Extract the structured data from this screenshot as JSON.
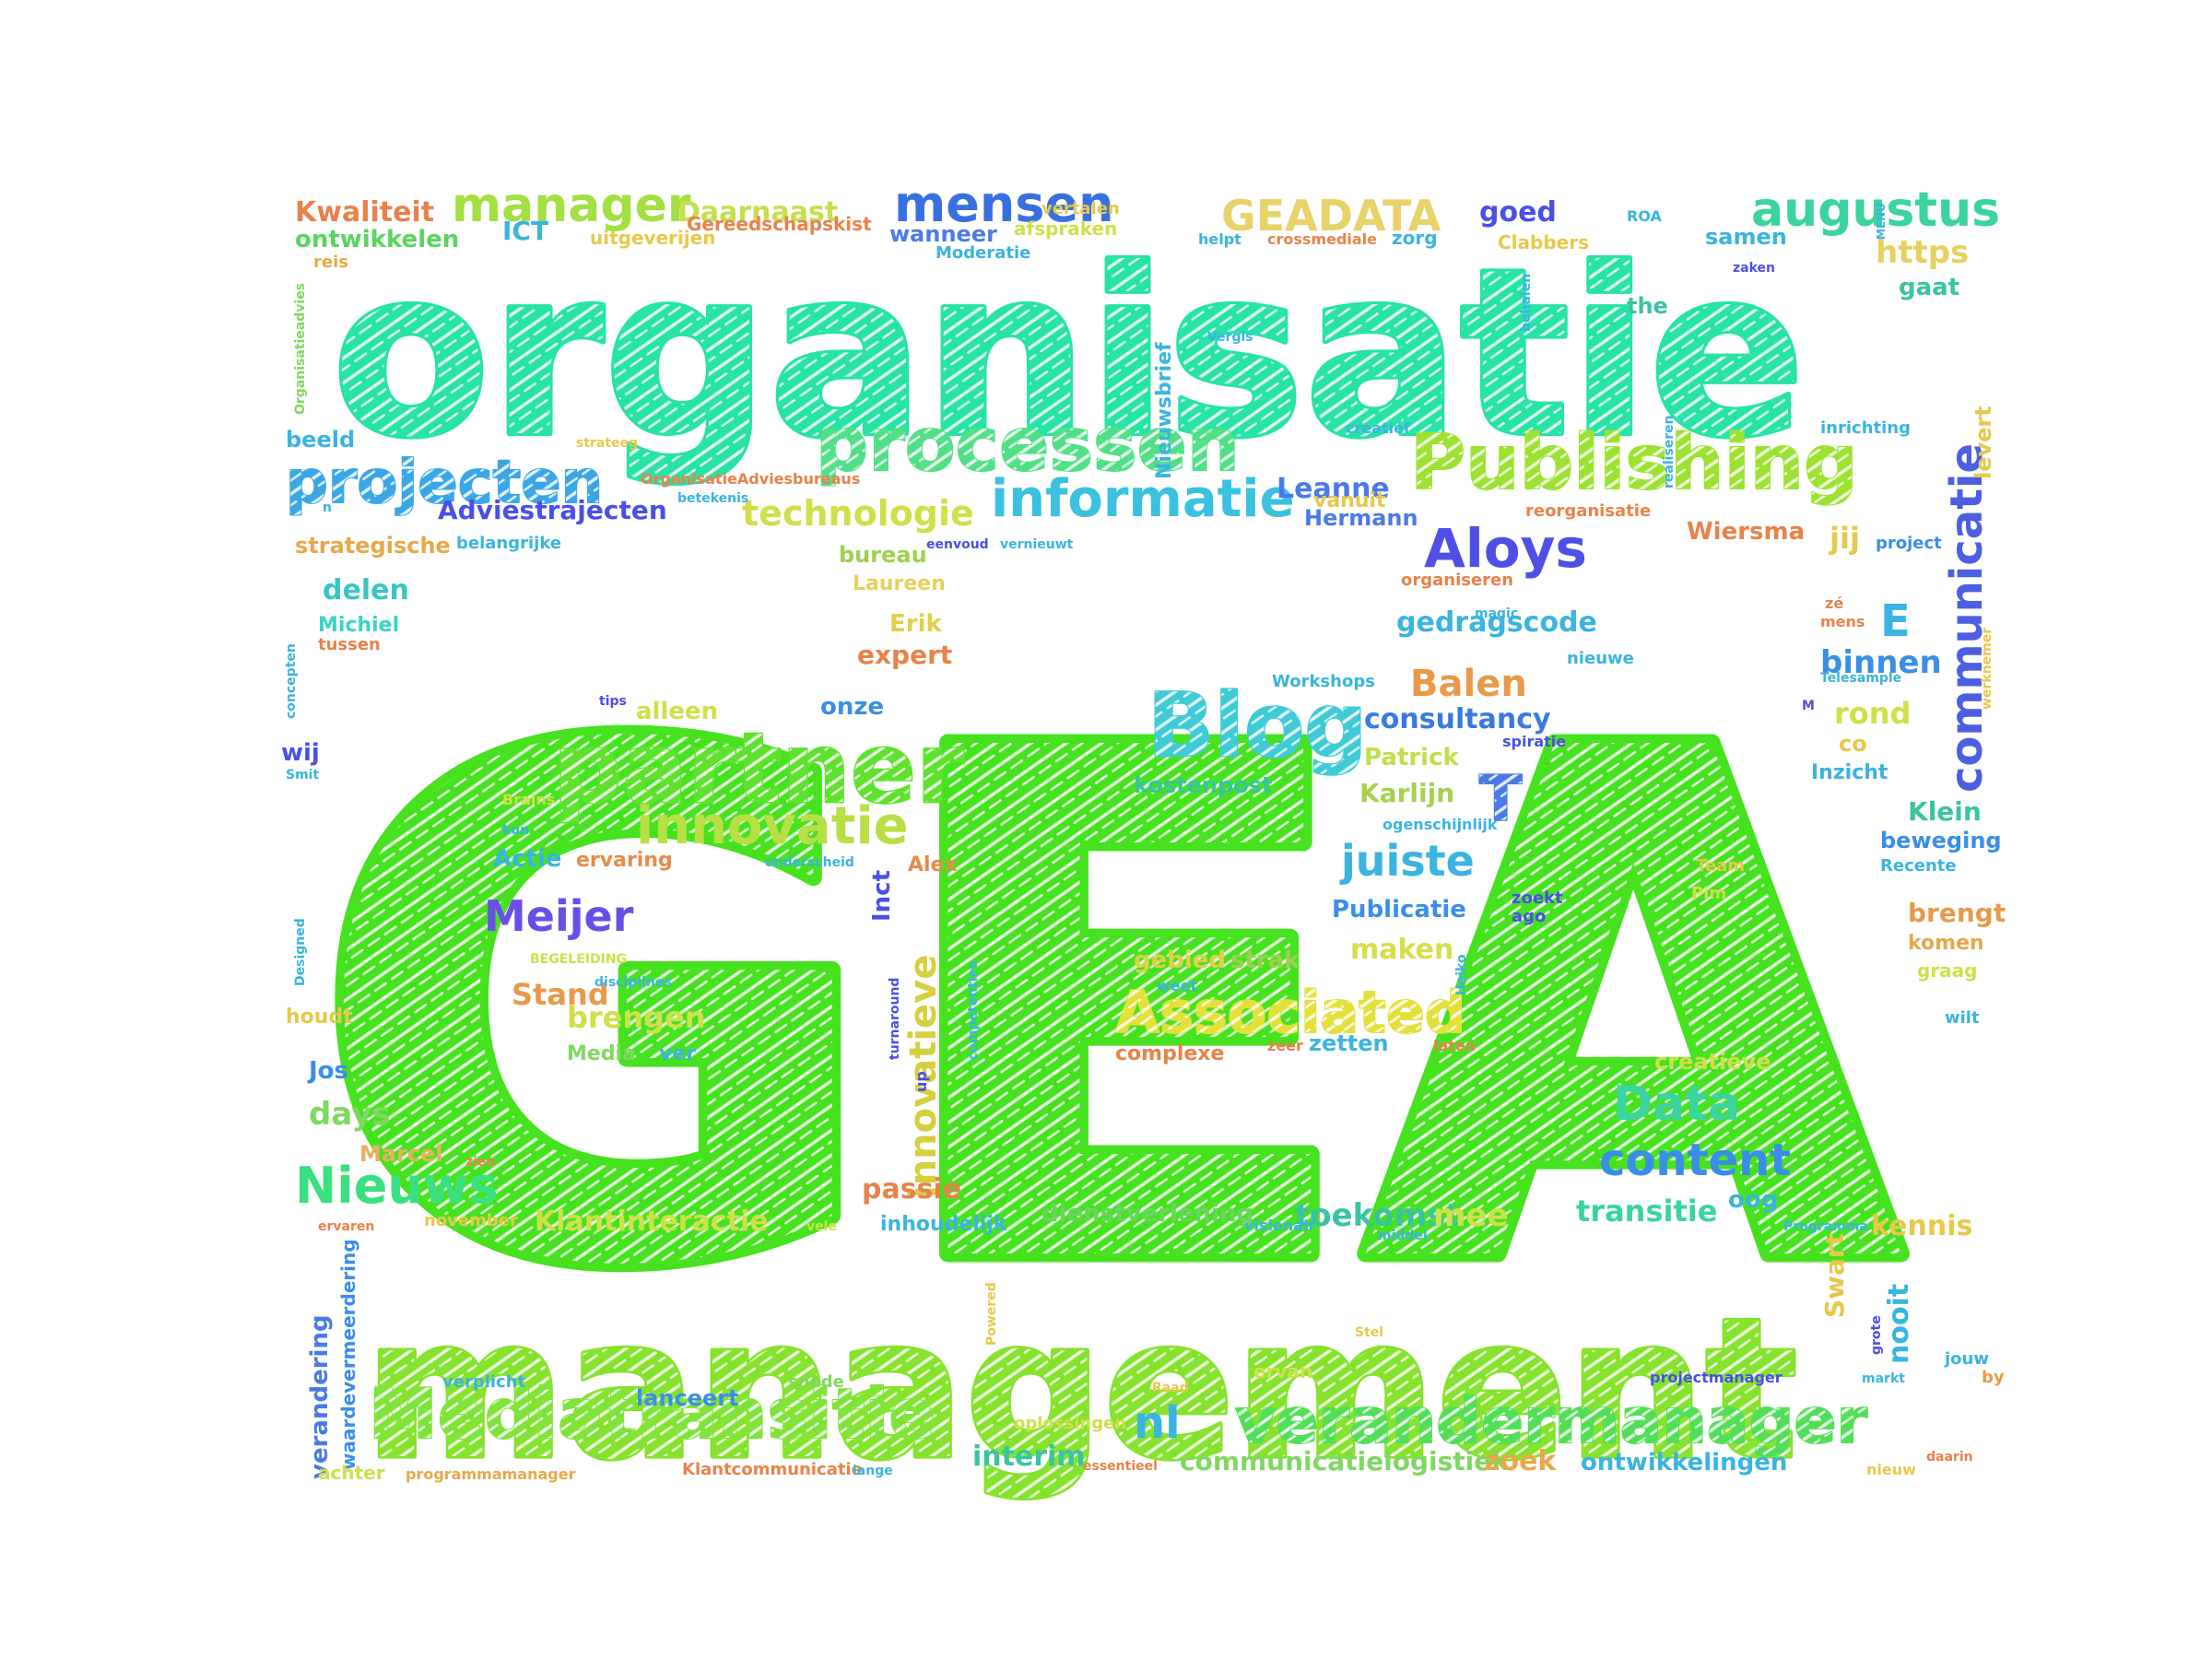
{
  "words": [
    {
      "text": "GEA",
      "color": "#47e21f"
    },
    {
      "text": "organisatie",
      "color": "#27e3a5"
    },
    {
      "text": "management",
      "color": "#86e32d"
    },
    {
      "text": "Publishing",
      "color": "#9be330"
    },
    {
      "text": "partner",
      "color": "#5ee22e"
    },
    {
      "text": "Blog",
      "color": "#3ecbd6"
    },
    {
      "text": "processen",
      "color": "#52e087"
    },
    {
      "text": "projecten",
      "color": "#3aa6e6"
    },
    {
      "text": "Mediatransitie",
      "color": "#7fe33a"
    },
    {
      "text": "verandermanager",
      "color": "#52df57"
    },
    {
      "text": "innovatie",
      "color": "#b8e044"
    },
    {
      "text": "Associated",
      "color": "#e3e03a"
    },
    {
      "text": "informatie",
      "color": "#3ac1e0"
    },
    {
      "text": "mensen",
      "color": "#3a6fe0"
    },
    {
      "text": "manager",
      "color": "#a3e042"
    },
    {
      "text": "augustus",
      "color": "#3ad49c"
    },
    {
      "text": "communicatie",
      "color": "#4b5fe0"
    },
    {
      "text": "GEADATA",
      "color": "#e8d36b"
    },
    {
      "text": "Aloys",
      "color": "#4f4fe6"
    },
    {
      "text": "Nieuws",
      "color": "#3ae07f"
    },
    {
      "text": "technologie",
      "color": "#d0df4a"
    },
    {
      "text": "content",
      "color": "#3a8ee6"
    },
    {
      "text": "Data",
      "color": "#3ad4a0"
    },
    {
      "text": "juiste",
      "color": "#3ab4e0"
    },
    {
      "text": "Meijer",
      "color": "#6a4fe6"
    },
    {
      "text": "innovatieve",
      "color": "#d6cf3e"
    },
    {
      "text": "Balen",
      "color": "#e89a4a"
    },
    {
      "text": "consultancy",
      "color": "#3a7ae0"
    },
    {
      "text": "Kwaliteit",
      "color": "#e8824a"
    },
    {
      "text": "ontwikkelen",
      "color": "#5ad460"
    },
    {
      "text": "Daarnaast",
      "color": "#c6df4a"
    },
    {
      "text": "Leanne",
      "color": "#4a7ae6"
    },
    {
      "text": "Adviestrajecten",
      "color": "#4a4fe6"
    },
    {
      "text": "strategische",
      "color": "#e8a84a"
    },
    {
      "text": "delen",
      "color": "#3ac4c4"
    },
    {
      "text": "Michiel",
      "color": "#3ad4c4"
    },
    {
      "text": "alleen",
      "color": "#cfe04a"
    },
    {
      "text": "onze",
      "color": "#3a8ee6"
    },
    {
      "text": "expert",
      "color": "#e8824a"
    },
    {
      "text": "Erik",
      "color": "#dfd04a"
    },
    {
      "text": "Laureen",
      "color": "#e8d060"
    },
    {
      "text": "bureau",
      "color": "#9fd050"
    },
    {
      "text": "gedragscode",
      "color": "#3ab4e0"
    },
    {
      "text": "Patrick",
      "color": "#c0df4a"
    },
    {
      "text": "Karlijn",
      "color": "#a8d050"
    },
    {
      "text": "kostenpost",
      "color": "#3ac4a0"
    },
    {
      "text": "Publicatie",
      "color": "#3a8ee6"
    },
    {
      "text": "maken",
      "color": "#d6df4a"
    },
    {
      "text": "gebied",
      "color": "#dfd04a"
    },
    {
      "text": "strak",
      "color": "#a0d050"
    },
    {
      "text": "complexe",
      "color": "#e8824a"
    },
    {
      "text": "zetten",
      "color": "#3ab4e0"
    },
    {
      "text": "brengen",
      "color": "#cfe04a"
    },
    {
      "text": "Stand",
      "color": "#e89a4a"
    },
    {
      "text": "Media",
      "color": "#7fd860"
    },
    {
      "text": "ver",
      "color": "#3ab4e0"
    },
    {
      "text": "Actie",
      "color": "#3ab4e0"
    },
    {
      "text": "ervaring",
      "color": "#e88a4a"
    },
    {
      "text": "Alex",
      "color": "#e88a4a"
    },
    {
      "text": "Inct",
      "color": "#4a4fe6"
    },
    {
      "text": "passie",
      "color": "#e8824a"
    },
    {
      "text": "inhoudelijk",
      "color": "#3ab4e0"
    },
    {
      "text": "dienstverlening",
      "color": "#6ad460"
    },
    {
      "text": "Klantinteractie",
      "color": "#cfe04a"
    },
    {
      "text": "toekomst",
      "color": "#3ac4a0"
    },
    {
      "text": "mee",
      "color": "#cfe04a"
    },
    {
      "text": "transitie",
      "color": "#3ad4a0"
    },
    {
      "text": "oog",
      "color": "#3ab4e0"
    },
    {
      "text": "kennis",
      "color": "#e8c84a"
    },
    {
      "text": "Swart",
      "color": "#e8c84a"
    },
    {
      "text": "nooit",
      "color": "#3ab4e0"
    },
    {
      "text": "days",
      "color": "#7fd860"
    },
    {
      "text": "Marcel",
      "color": "#e8b060"
    },
    {
      "text": "Jos",
      "color": "#3a8ee6"
    },
    {
      "text": "houdt",
      "color": "#e8c84a"
    },
    {
      "text": "wij",
      "color": "#4a4fe6"
    },
    {
      "text": "beeld",
      "color": "#3ab4e0"
    },
    {
      "text": "verandering",
      "color": "#4a7ae6"
    },
    {
      "text": "waardevermeerdering",
      "color": "#3a8ee6"
    },
    {
      "text": "achter",
      "color": "#cfe04a"
    },
    {
      "text": "programmamanager",
      "color": "#e8a84a"
    },
    {
      "text": "lanceert",
      "color": "#3a8ee6"
    },
    {
      "text": "verplicht",
      "color": "#3ab4e0"
    },
    {
      "text": "snede",
      "color": "#7fd860"
    },
    {
      "text": "interim",
      "color": "#3ac4a0"
    },
    {
      "text": "nl",
      "color": "#3ab4e0"
    },
    {
      "text": "communicatielogistiek",
      "color": "#7fd860"
    },
    {
      "text": "zoek",
      "color": "#e8a84a"
    },
    {
      "text": "ontwikkelingen",
      "color": "#3ab4e0"
    },
    {
      "text": "Klantcommunicatie",
      "color": "#e8824a"
    },
    {
      "text": "oplossingen",
      "color": "#cfe04a"
    },
    {
      "text": "ervan",
      "color": "#cfe04a"
    },
    {
      "text": "projectmanager",
      "color": "#4a4fe6"
    },
    {
      "text": "markt",
      "color": "#3ab4e0"
    },
    {
      "text": "jouw",
      "color": "#3ab4e0"
    },
    {
      "text": "by",
      "color": "#e89a4a"
    },
    {
      "text": "creatieve",
      "color": "#cfe04a"
    },
    {
      "text": "brengt",
      "color": "#e89a4a"
    },
    {
      "text": "komen",
      "color": "#e8a84a"
    },
    {
      "text": "graag",
      "color": "#cfe04a"
    },
    {
      "text": "wilt",
      "color": "#3ab4e0"
    },
    {
      "text": "beweging",
      "color": "#3a8ee6"
    },
    {
      "text": "Recente",
      "color": "#3ab4e0"
    },
    {
      "text": "Klein",
      "color": "#3ac4a0"
    },
    {
      "text": "Inzicht",
      "color": "#3ab4e0"
    },
    {
      "text": "co",
      "color": "#e8c84a"
    },
    {
      "text": "rond",
      "color": "#cfe04a"
    },
    {
      "text": "binnen",
      "color": "#3a8ee6"
    },
    {
      "text": "E",
      "color": "#3ab4e0"
    },
    {
      "text": "T",
      "color": "#4a7ae6"
    },
    {
      "text": "jij",
      "color": "#e8c84a"
    },
    {
      "text": "project",
      "color": "#3a8ee6"
    },
    {
      "text": "Wiersma",
      "color": "#e8824a"
    },
    {
      "text": "Hermann",
      "color": "#4a7ae6"
    },
    {
      "text": "organiseren",
      "color": "#e8824a"
    },
    {
      "text": "vanuit",
      "color": "#e8c84a"
    },
    {
      "text": "goed",
      "color": "#4a4fe6"
    },
    {
      "text": "samen",
      "color": "#3ab4e0"
    },
    {
      "text": "https",
      "color": "#e8d060"
    },
    {
      "text": "gaat",
      "color": "#3ac4a0"
    },
    {
      "text": "levert",
      "color": "#e8c84a"
    },
    {
      "text": "inrichting",
      "color": "#3ab4e0"
    },
    {
      "text": "ICT",
      "color": "#3ab4e0"
    },
    {
      "text": "Gereedschapskist",
      "color": "#e8824a"
    },
    {
      "text": "wanneer",
      "color": "#4a7ae6"
    },
    {
      "text": "afspraken",
      "color": "#cfe04a"
    },
    {
      "text": "vertalen",
      "color": "#e8c84a"
    },
    {
      "text": "uitgeverijen",
      "color": "#e8c84a"
    },
    {
      "text": "reis",
      "color": "#e8a84a"
    },
    {
      "text": "Nieuwsbrief",
      "color": "#3ab4e0"
    },
    {
      "text": "zorg",
      "color": "#3ab4e0"
    },
    {
      "text": "crossmediale",
      "color": "#e8824a"
    },
    {
      "text": "helpt",
      "color": "#3ab4e0"
    },
    {
      "text": "Clabbers",
      "color": "#e8c84a"
    },
    {
      "text": "ROA",
      "color": "#3ab4e0"
    },
    {
      "text": "the",
      "color": "#3ac4a0"
    },
    {
      "text": "zaken",
      "color": "#4a4fe6"
    },
    {
      "text": "Moderatie",
      "color": "#3ab4e0"
    },
    {
      "text": "reorganisatie",
      "color": "#e8824a"
    },
    {
      "text": "creatief",
      "color": "#3ab4e0"
    },
    {
      "text": "realiseren",
      "color": "#3ab4e0"
    },
    {
      "text": "belangrijke",
      "color": "#3ab4e0"
    },
    {
      "text": "OrganisatieAdviesbureaus",
      "color": "#e8824a"
    },
    {
      "text": "strateeg",
      "color": "#e8c84a"
    },
    {
      "text": "tussen",
      "color": "#e8824a"
    },
    {
      "text": "mens",
      "color": "#e8824a"
    },
    {
      "text": "zé",
      "color": "#e8824a"
    },
    {
      "text": "spiratie",
      "color": "#4a4fe6"
    },
    {
      "text": "nieuwe",
      "color": "#3ab4e0"
    },
    {
      "text": "Workshops",
      "color": "#3ab4e0"
    },
    {
      "text": "magic",
      "color": "#3ab4e0"
    },
    {
      "text": "Team",
      "color": "#e8c84a"
    },
    {
      "text": "Pim",
      "color": "#cfe04a"
    },
    {
      "text": "zoekt",
      "color": "#4a4fe6"
    },
    {
      "text": "ago",
      "color": "#4a4fe6"
    },
    {
      "text": "Heiko",
      "color": "#3ab4e0"
    },
    {
      "text": "weet",
      "color": "#3ab4e0"
    },
    {
      "text": "zeer",
      "color": "#e8824a"
    },
    {
      "text": "laten",
      "color": "#e8824a"
    },
    {
      "text": "visionair",
      "color": "#3ab4e0"
    },
    {
      "text": "Programma",
      "color": "#3ab4e0"
    },
    {
      "text": "Powered",
      "color": "#e8c84a"
    },
    {
      "text": "competenties",
      "color": "#3ab4e0"
    },
    {
      "text": "turnaround",
      "color": "#4a4fe6"
    },
    {
      "text": "up",
      "color": "#4a4fe6"
    },
    {
      "text": "disciplines",
      "color": "#3ab4e0"
    },
    {
      "text": "BEGELEIDING",
      "color": "#cfe04a"
    },
    {
      "text": "onderscheid",
      "color": "#3ab4e0"
    },
    {
      "text": "ogenschijnlijk",
      "color": "#3ab4e0"
    },
    {
      "text": "Brains",
      "color": "#cfe04a"
    },
    {
      "text": "kun",
      "color": "#3ab4e0"
    },
    {
      "text": "tips",
      "color": "#4a4fe6"
    },
    {
      "text": "Designed",
      "color": "#3ab4e0"
    },
    {
      "text": "concepten",
      "color": "#3ab4e0"
    },
    {
      "text": "Smit",
      "color": "#3ab4e0"
    },
    {
      "text": "zien",
      "color": "#e8824a"
    },
    {
      "text": "ervaren",
      "color": "#e8824a"
    },
    {
      "text": "november",
      "color": "#e8c84a"
    },
    {
      "text": "vele",
      "color": "#cfe04a"
    },
    {
      "text": "essentieel",
      "color": "#e8824a"
    },
    {
      "text": "lange",
      "color": "#3ab4e0"
    },
    {
      "text": "nieuw",
      "color": "#e8c84a"
    },
    {
      "text": "daarin",
      "color": "#e8824a"
    },
    {
      "text": "grote",
      "color": "#4a4fe6"
    },
    {
      "text": "Stel",
      "color": "#e8c84a"
    },
    {
      "text": "Raad",
      "color": "#e8c84a"
    },
    {
      "text": "middel",
      "color": "#3ab4e0"
    },
    {
      "text": "eenvoud",
      "color": "#4a4fe6"
    },
    {
      "text": "vernieuwt",
      "color": "#3ab4e0"
    },
    {
      "text": "Telesample",
      "color": "#3ab4e0"
    },
    {
      "text": "werknemer",
      "color": "#e8c84a"
    },
    {
      "text": "Vergis",
      "color": "#3ab4e0"
    },
    {
      "text": "behalen",
      "color": "#3ab4e0"
    },
    {
      "text": "MENU",
      "color": "#3ab4e0"
    },
    {
      "text": "Organisatieadvies",
      "color": "#7fd860"
    },
    {
      "text": "betekenis",
      "color": "#3ab4e0"
    },
    {
      "text": "M",
      "color": "#4a4fe6"
    },
    {
      "text": "n",
      "color": "#3ab4e0"
    }
  ]
}
